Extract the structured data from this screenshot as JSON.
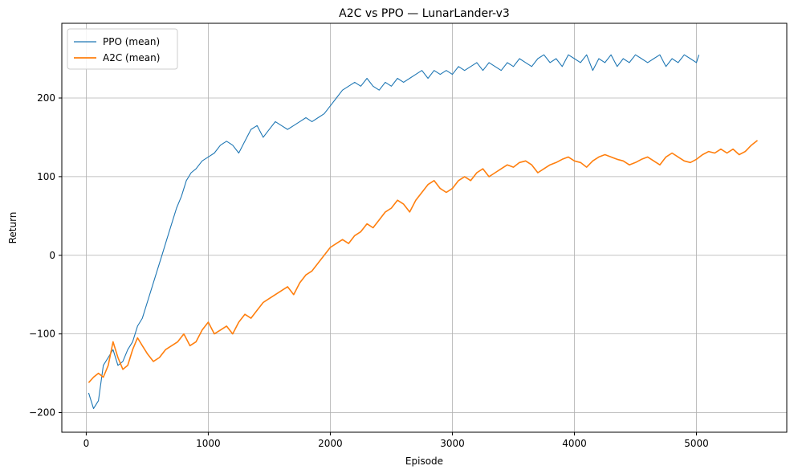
{
  "chart_data": {
    "type": "line",
    "title": "A2C vs PPO — LunarLander-v3",
    "xlabel": "Episode",
    "ylabel": "Return",
    "xlim": [
      -200,
      5740
    ],
    "ylim": [
      -225,
      295
    ],
    "xticks": [
      0,
      1000,
      2000,
      3000,
      4000,
      5000
    ],
    "yticks": [
      -200,
      -100,
      0,
      100,
      200
    ],
    "grid": true,
    "legend_position": "top-left",
    "series": [
      {
        "name": "PPO (mean)",
        "color": "#1f77b4",
        "x": [
          20,
          60,
          100,
          140,
          180,
          220,
          260,
          300,
          340,
          380,
          420,
          460,
          500,
          540,
          580,
          620,
          660,
          700,
          740,
          780,
          820,
          860,
          900,
          950,
          1000,
          1050,
          1100,
          1150,
          1200,
          1250,
          1300,
          1350,
          1400,
          1450,
          1500,
          1550,
          1600,
          1650,
          1700,
          1750,
          1800,
          1850,
          1900,
          1950,
          2000,
          2050,
          2100,
          2150,
          2200,
          2250,
          2300,
          2350,
          2400,
          2450,
          2500,
          2550,
          2600,
          2650,
          2700,
          2750,
          2800,
          2850,
          2900,
          2950,
          3000,
          3050,
          3100,
          3150,
          3200,
          3250,
          3300,
          3350,
          3400,
          3450,
          3500,
          3550,
          3600,
          3650,
          3700,
          3750,
          3800,
          3850,
          3900,
          3950,
          4000,
          4050,
          4100,
          4150,
          4200,
          4250,
          4300,
          4350,
          4400,
          4450,
          4500,
          4550,
          4600,
          4650,
          4700,
          4750,
          4800,
          4850,
          4900,
          4950,
          5000,
          5020
        ],
        "y": [
          -175,
          -195,
          -185,
          -140,
          -130,
          -120,
          -140,
          -135,
          -120,
          -110,
          -90,
          -80,
          -60,
          -40,
          -20,
          0,
          20,
          40,
          60,
          75,
          95,
          105,
          110,
          120,
          125,
          130,
          140,
          145,
          140,
          130,
          145,
          160,
          165,
          150,
          160,
          170,
          165,
          160,
          165,
          170,
          175,
          170,
          175,
          180,
          190,
          200,
          210,
          215,
          220,
          215,
          225,
          215,
          210,
          220,
          215,
          225,
          220,
          225,
          230,
          235,
          225,
          235,
          230,
          235,
          230,
          240,
          235,
          240,
          245,
          235,
          245,
          240,
          235,
          245,
          240,
          250,
          245,
          240,
          250,
          255,
          245,
          250,
          240,
          255,
          250,
          245,
          255,
          235,
          250,
          245,
          255,
          240,
          250,
          245,
          255,
          250,
          245,
          250,
          255,
          240,
          250,
          245,
          255,
          250,
          245,
          255
        ]
      },
      {
        "name": "A2C (mean)",
        "color": "#ff7f0e",
        "x": [
          20,
          60,
          100,
          140,
          180,
          220,
          260,
          300,
          340,
          380,
          420,
          460,
          500,
          550,
          600,
          650,
          700,
          750,
          800,
          850,
          900,
          950,
          1000,
          1050,
          1100,
          1150,
          1200,
          1250,
          1300,
          1350,
          1400,
          1450,
          1500,
          1550,
          1600,
          1650,
          1700,
          1750,
          1800,
          1850,
          1900,
          1950,
          2000,
          2050,
          2100,
          2150,
          2200,
          2250,
          2300,
          2350,
          2400,
          2450,
          2500,
          2550,
          2600,
          2650,
          2700,
          2750,
          2800,
          2850,
          2900,
          2950,
          3000,
          3050,
          3100,
          3150,
          3200,
          3250,
          3300,
          3350,
          3400,
          3450,
          3500,
          3550,
          3600,
          3650,
          3700,
          3750,
          3800,
          3850,
          3900,
          3950,
          4000,
          4050,
          4100,
          4150,
          4200,
          4250,
          4300,
          4350,
          4400,
          4450,
          4500,
          4550,
          4600,
          4650,
          4700,
          4750,
          4800,
          4850,
          4900,
          4950,
          5000,
          5050,
          5100,
          5150,
          5200,
          5250,
          5300,
          5350,
          5400,
          5450,
          5500
        ],
        "y": [
          -162,
          -155,
          -150,
          -155,
          -140,
          -110,
          -130,
          -145,
          -140,
          -120,
          -105,
          -115,
          -125,
          -135,
          -130,
          -120,
          -115,
          -110,
          -100,
          -115,
          -110,
          -95,
          -85,
          -100,
          -95,
          -90,
          -100,
          -85,
          -75,
          -80,
          -70,
          -60,
          -55,
          -50,
          -45,
          -40,
          -50,
          -35,
          -25,
          -20,
          -10,
          0,
          10,
          15,
          20,
          15,
          25,
          30,
          40,
          35,
          45,
          55,
          60,
          70,
          65,
          55,
          70,
          80,
          90,
          95,
          85,
          80,
          85,
          95,
          100,
          95,
          105,
          110,
          100,
          105,
          110,
          115,
          112,
          118,
          120,
          115,
          105,
          110,
          115,
          118,
          122,
          125,
          120,
          118,
          112,
          120,
          125,
          128,
          125,
          122,
          120,
          115,
          118,
          122,
          125,
          120,
          115,
          125,
          130,
          125,
          120,
          118,
          122,
          128,
          132,
          130,
          135,
          130,
          135,
          128,
          132,
          140,
          146
        ]
      }
    ]
  }
}
